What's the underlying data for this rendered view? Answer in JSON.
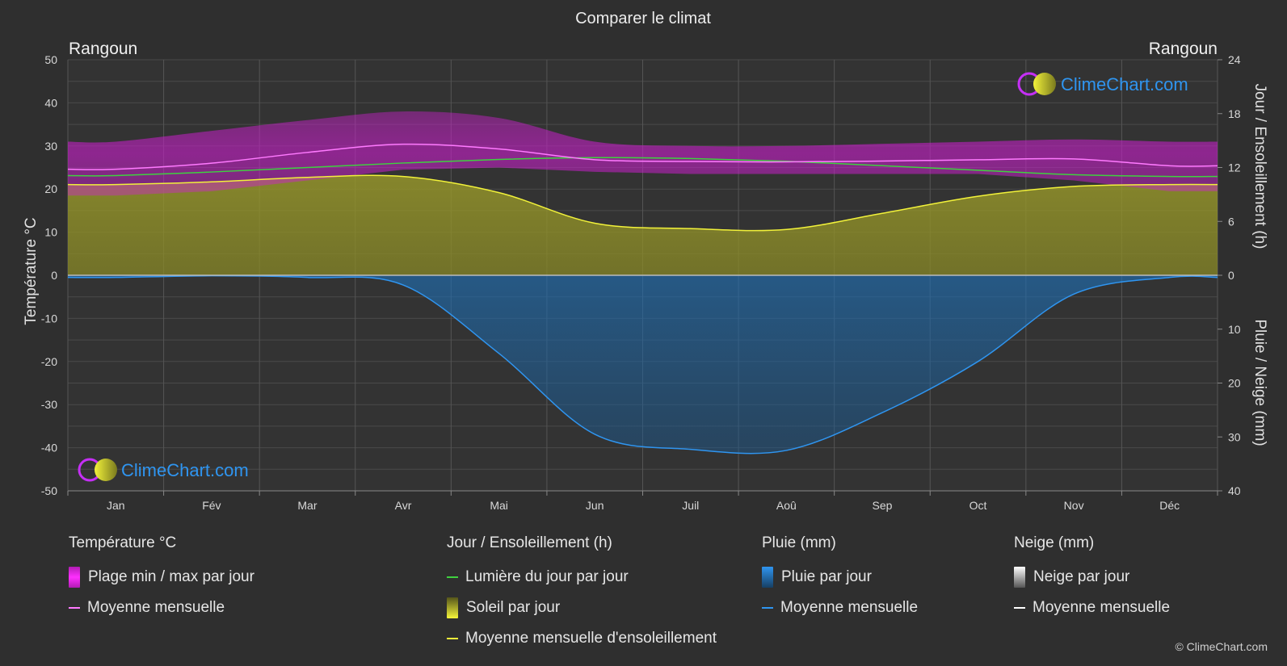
{
  "title": "Comparer le climat",
  "location_left": "Rangoun",
  "location_right": "Rangoun",
  "brand": "ClimeChart.com",
  "copyright": "© ClimeChart.com",
  "colors": {
    "background": "#2f2f2f",
    "temp_range": "#c21fc4",
    "temp_mean": "#ff7aff",
    "daylight": "#3fd13f",
    "sunshine_fill": "#a8a830",
    "sunshine_mean": "#f2f23a",
    "rain_fill": "#1f6fb5",
    "rain_mean": "#2f95f0",
    "snow_mean": "#ffffff"
  },
  "legend": {
    "temperature": {
      "header": "Température °C",
      "items": [
        "Plage min / max par jour",
        "Moyenne mensuelle"
      ]
    },
    "sun": {
      "header": "Jour / Ensoleillement (h)",
      "items": [
        "Lumière du jour par jour",
        "Soleil par jour",
        "Moyenne mensuelle d'ensoleillement"
      ]
    },
    "rain": {
      "header": "Pluie (mm)",
      "items": [
        "Pluie par jour",
        "Moyenne mensuelle"
      ]
    },
    "snow": {
      "header": "Neige (mm)",
      "items": [
        "Neige par jour",
        "Moyenne mensuelle"
      ]
    }
  },
  "chart_data": {
    "type": "area",
    "title": "Comparer le climat",
    "categories": [
      "Jan",
      "Fév",
      "Mar",
      "Avr",
      "Mai",
      "Jun",
      "Juil",
      "Aoû",
      "Sep",
      "Oct",
      "Nov",
      "Déc"
    ],
    "y_left": {
      "label": "Température °C",
      "range": [
        -50,
        50
      ],
      "ticks": [
        50,
        40,
        30,
        20,
        10,
        0,
        -10,
        -20,
        -30,
        -40,
        -50
      ]
    },
    "y_right_top": {
      "label": "Jour / Ensoleillement (h)",
      "range": [
        0,
        24
      ],
      "ticks": [
        24,
        18,
        12,
        6,
        0
      ]
    },
    "y_right_bottom": {
      "label": "Pluie / Neige (mm)",
      "range": [
        0,
        40
      ],
      "ticks": [
        0,
        10,
        20,
        30,
        40
      ]
    },
    "grid": true,
    "series": [
      {
        "name": "Moyenne mensuelle",
        "group": "temperature",
        "values": [
          24.6,
          26.0,
          28.5,
          30.4,
          29.3,
          26.8,
          26.4,
          26.3,
          26.5,
          26.8,
          27.0,
          25.4
        ]
      },
      {
        "name": "Plage min / max par jour",
        "group": "temperature",
        "min": [
          18.5,
          19.5,
          22.0,
          24.5,
          25.0,
          24.0,
          23.5,
          23.5,
          23.5,
          23.5,
          22.0,
          19.5
        ],
        "max": [
          31.0,
          33.5,
          36.0,
          38.0,
          36.5,
          31.0,
          30.0,
          30.0,
          30.5,
          31.0,
          31.5,
          31.0
        ]
      },
      {
        "name": "Lumière du jour par jour",
        "group": "sun",
        "values": [
          11.1,
          11.5,
          12.0,
          12.5,
          12.9,
          13.1,
          13.0,
          12.7,
          12.2,
          11.7,
          11.2,
          11.0
        ]
      },
      {
        "name": "Moyenne mensuelle d'ensoleillement",
        "group": "sun",
        "values": [
          10.1,
          10.4,
          10.9,
          11.0,
          9.2,
          5.8,
          5.2,
          5.1,
          6.9,
          8.8,
          9.9,
          10.1
        ]
      },
      {
        "name": "Moyenne mensuelle",
        "group": "rain",
        "values": [
          0.4,
          0.1,
          0.4,
          1.8,
          14.5,
          29.5,
          32.3,
          32.5,
          25.5,
          16.0,
          3.5,
          0.4
        ]
      }
    ]
  }
}
